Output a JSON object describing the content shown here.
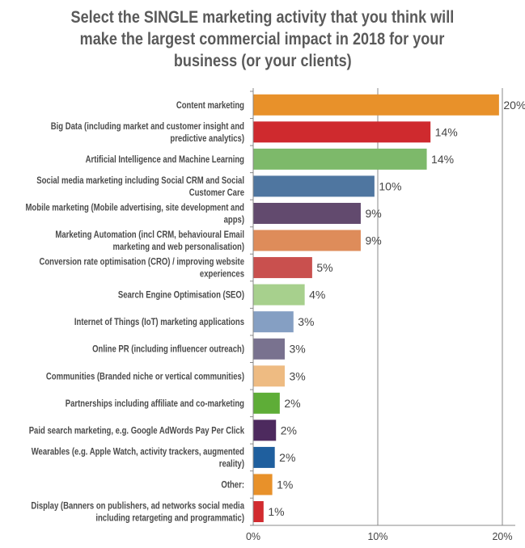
{
  "chart_data": {
    "type": "bar",
    "orientation": "horizontal",
    "title": "Select the SINGLE marketing activity that you think will make the largest commercial impact in 2018 for your business (or your clients)",
    "title_lines": [
      "Select the SINGLE marketing activity that you think will",
      "make the largest commercial impact in 2018 for your",
      "business (or your clients)"
    ],
    "xlim": [
      0,
      20
    ],
    "x_ticks": [
      "0%",
      "10%",
      "20%"
    ],
    "grid": "vertical",
    "categories": [
      [
        "Content marketing"
      ],
      [
        "Big Data (including market and customer insight and",
        "predictive analytics)"
      ],
      [
        "Artificial Intelligence and Machine Learning"
      ],
      [
        "Social media marketing including Social CRM and Social",
        "Customer Care"
      ],
      [
        "Mobile marketing (Mobile advertising, site development and",
        "apps)"
      ],
      [
        "Marketing Automation (incl CRM, behavioural Email",
        "marketing and web personalisation)"
      ],
      [
        "Conversion rate optimisation (CRO) / improving website",
        "experiences"
      ],
      [
        "Search Engine Optimisation (SEO)"
      ],
      [
        "Internet of Things (IoT) marketing applications"
      ],
      [
        "Online PR (including influencer outreach)"
      ],
      [
        "Communities (Branded niche or vertical communities)"
      ],
      [
        "Partnerships including affiliate and co-marketing"
      ],
      [
        "Paid search marketing, e.g. Google AdWords Pay Per Click"
      ],
      [
        "Wearables (e.g. Apple Watch, activity trackers, augmented",
        "reality)"
      ],
      [
        "Other:"
      ],
      [
        "Display (Banners on publishers, ad networks social media",
        "including retargeting and programmatic)"
      ]
    ],
    "values": [
      19.7,
      14.2,
      13.9,
      9.7,
      8.6,
      8.6,
      4.7,
      4.1,
      3.2,
      2.5,
      2.5,
      2.1,
      1.8,
      1.7,
      1.5,
      0.8
    ],
    "data_labels": [
      "20%",
      "14%",
      "14%",
      "10%",
      "9%",
      "9%",
      "5%",
      "4%",
      "3%",
      "3%",
      "3%",
      "2%",
      "2%",
      "2%",
      "1%",
      "1%"
    ],
    "colors": [
      "#E8912A",
      "#CF2A2E",
      "#7DB96A",
      "#4F76A0",
      "#624A6E",
      "#DE8C5A",
      "#C9504E",
      "#A7D08D",
      "#859FC3",
      "#79728F",
      "#EEBB82",
      "#5EAD37",
      "#4D2A5E",
      "#1F5F9E",
      "#E8912A",
      "#D22B2F"
    ]
  }
}
